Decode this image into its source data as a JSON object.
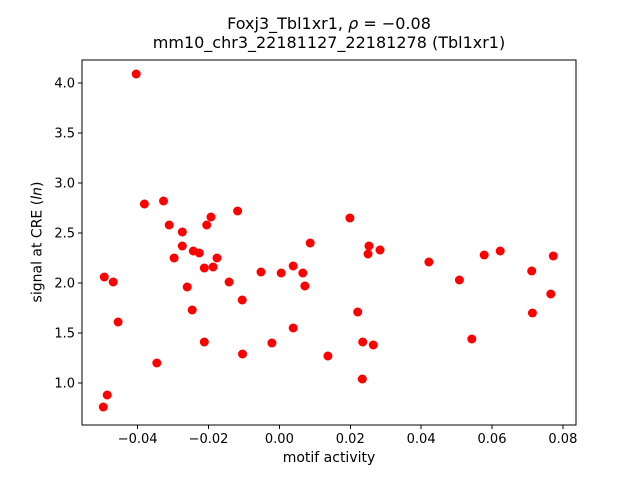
{
  "title": {
    "part1": "Foxj3_Tbl1xr1, ",
    "rho": "ρ",
    "part2": " = −0.08",
    "line2": "mm10_chr3_22181127_22181278 (Tbl1xr1)"
  },
  "ylabel": {
    "prefix": "signal at CRE (",
    "ital": "ln",
    "suffix": ")"
  },
  "xlabel": "motif activity",
  "chart_data": {
    "type": "scatter",
    "title": "Foxj3_Tbl1xr1, ρ = −0.08",
    "subtitle": "mm10_chr3_22181127_22181278 (Tbl1xr1)",
    "xlabel": "motif activity",
    "ylabel": "signal at CRE (ln)",
    "xlim": [
      -0.0557,
      0.0837
    ],
    "ylim": [
      0.58,
      4.23
    ],
    "xticks": [
      -0.04,
      -0.02,
      0.0,
      0.02,
      0.04,
      0.06,
      0.08
    ],
    "xtick_labels": [
      "−0.04",
      "−0.02",
      "0.00",
      "0.02",
      "0.04",
      "0.06",
      "0.08"
    ],
    "yticks": [
      1.0,
      1.5,
      2.0,
      2.5,
      3.0,
      3.5,
      4.0
    ],
    "ytick_labels": [
      "1.0",
      "1.5",
      "2.0",
      "2.5",
      "3.0",
      "3.5",
      "4.0"
    ],
    "grid": false,
    "legend": null,
    "marker_color": "#ff0000",
    "marker_radius": 4.5,
    "points": [
      [
        -0.0404,
        4.09
      ],
      [
        -0.0381,
        2.79
      ],
      [
        -0.0327,
        2.82
      ],
      [
        -0.0311,
        2.58
      ],
      [
        -0.0274,
        2.51
      ],
      [
        -0.0193,
        2.66
      ],
      [
        -0.0205,
        2.58
      ],
      [
        -0.0118,
        2.72
      ],
      [
        -0.0274,
        2.37
      ],
      [
        -0.0494,
        2.06
      ],
      [
        -0.0469,
        2.01
      ],
      [
        -0.0455,
        1.61
      ],
      [
        -0.0486,
        0.88
      ],
      [
        -0.0497,
        0.76
      ],
      [
        -0.0346,
        1.2
      ],
      [
        -0.0297,
        2.25
      ],
      [
        -0.0243,
        2.32
      ],
      [
        -0.0226,
        2.3
      ],
      [
        -0.0212,
        2.15
      ],
      [
        -0.0187,
        2.16
      ],
      [
        -0.0176,
        2.25
      ],
      [
        -0.026,
        1.96
      ],
      [
        -0.0246,
        1.73
      ],
      [
        -0.0142,
        2.01
      ],
      [
        -0.0105,
        1.83
      ],
      [
        -0.0212,
        1.41
      ],
      [
        -0.0104,
        1.29
      ],
      [
        -0.0052,
        2.11
      ],
      [
        0.0005,
        2.1
      ],
      [
        0.0039,
        2.17
      ],
      [
        0.0066,
        2.1
      ],
      [
        0.0072,
        1.97
      ],
      [
        0.0039,
        1.55
      ],
      [
        -0.0021,
        1.4
      ],
      [
        0.0137,
        1.27
      ],
      [
        0.0087,
        2.4
      ],
      [
        0.0199,
        2.65
      ],
      [
        0.0253,
        2.37
      ],
      [
        0.025,
        2.29
      ],
      [
        0.0284,
        2.33
      ],
      [
        0.0221,
        1.71
      ],
      [
        0.0235,
        1.41
      ],
      [
        0.0265,
        1.38
      ],
      [
        0.0234,
        1.04
      ],
      [
        0.0422,
        2.21
      ],
      [
        0.0508,
        2.03
      ],
      [
        0.0578,
        2.28
      ],
      [
        0.0623,
        2.32
      ],
      [
        0.0712,
        2.12
      ],
      [
        0.0773,
        2.27
      ],
      [
        0.0766,
        1.89
      ],
      [
        0.0714,
        1.7
      ],
      [
        0.0543,
        1.44
      ]
    ]
  }
}
